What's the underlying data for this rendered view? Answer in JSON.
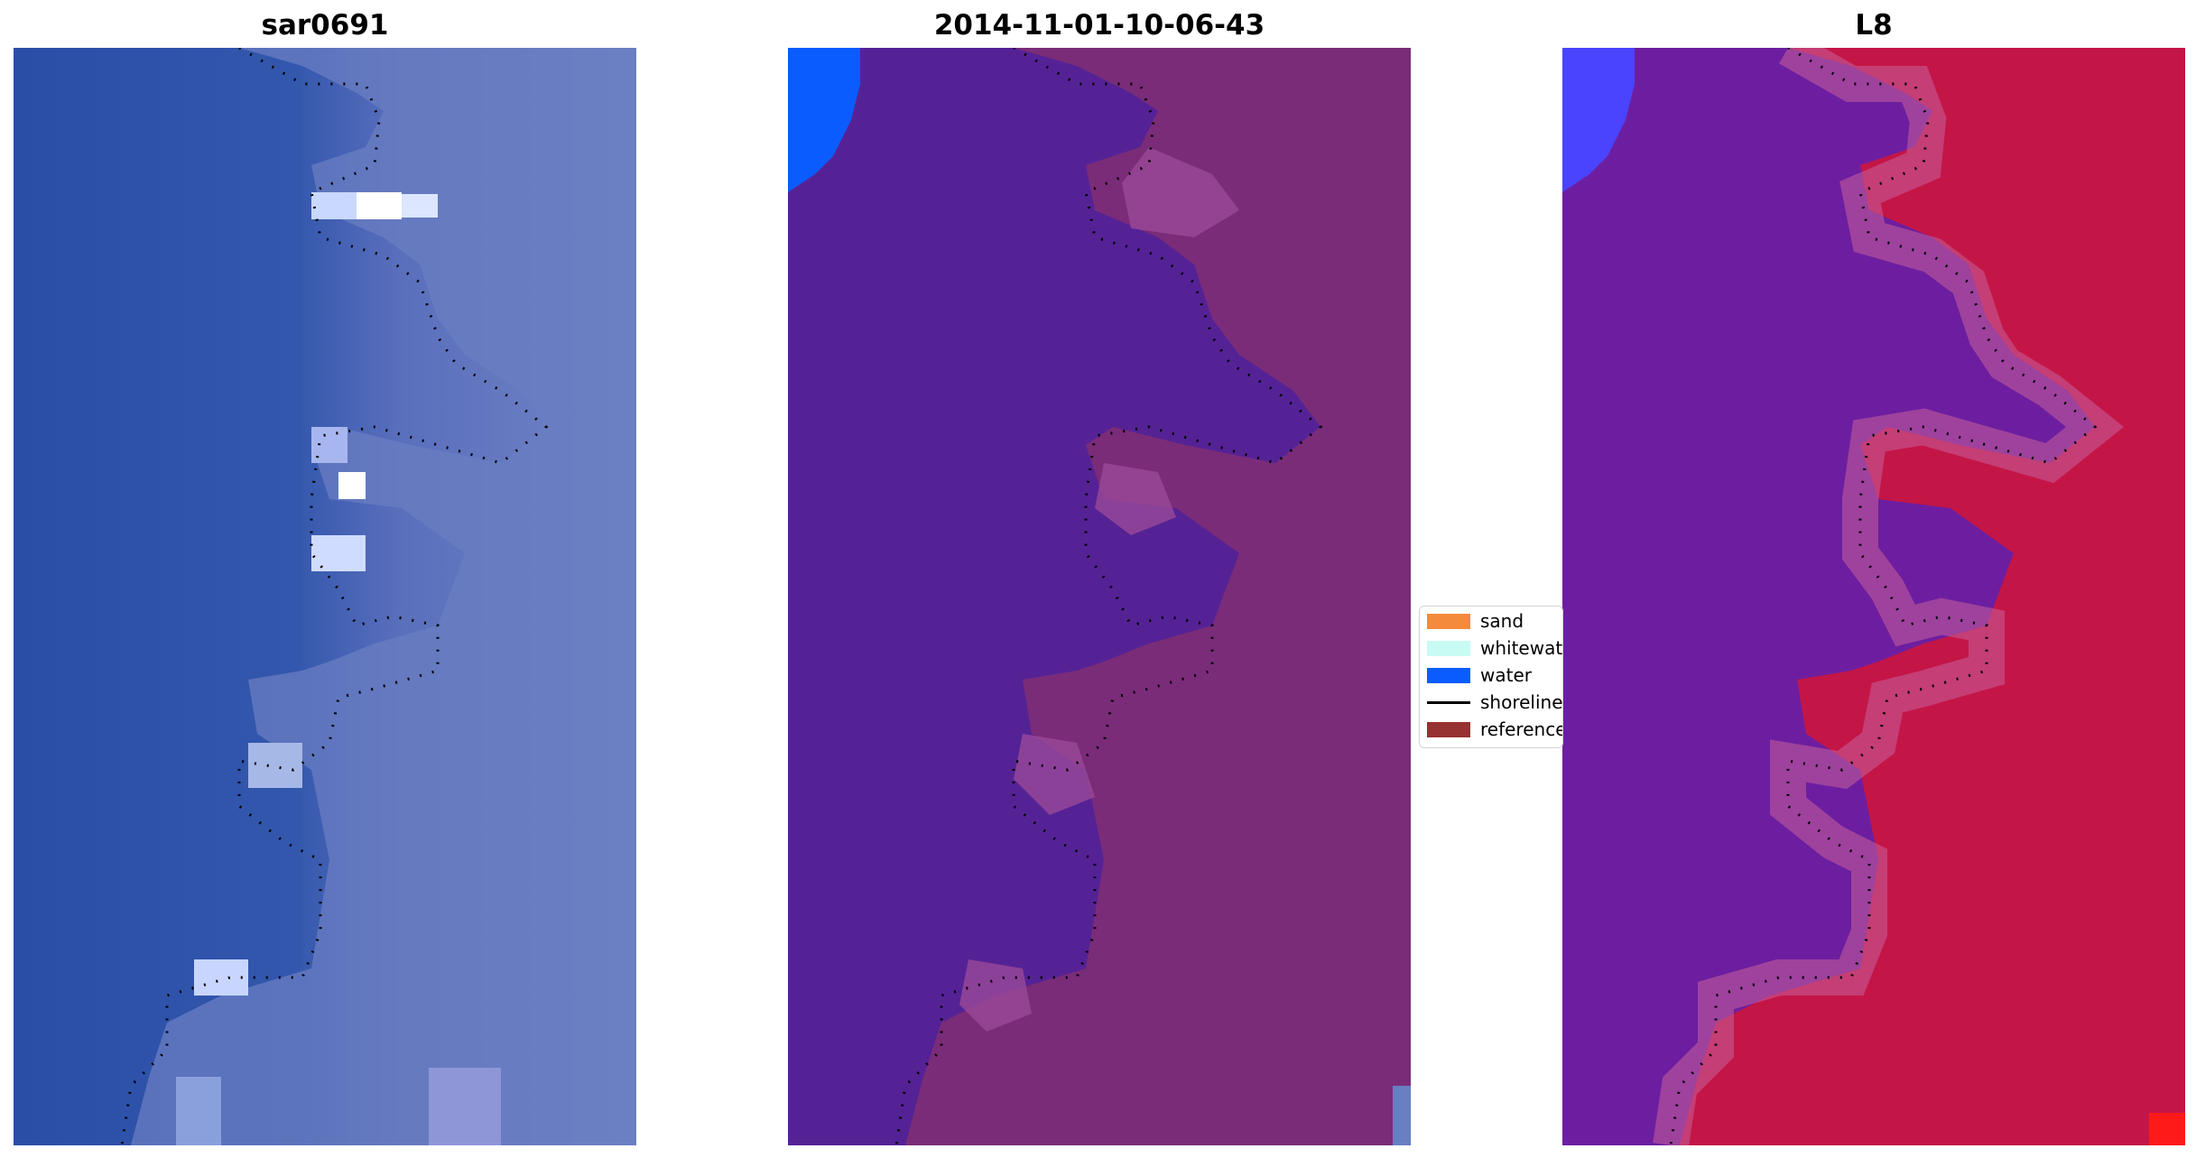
{
  "panels": [
    {
      "id": "rgb",
      "title": "sar0691",
      "base_color": "#2b50a8",
      "land_color": "#6f82c4",
      "highlight_color": "#e6eeff"
    },
    {
      "id": "classified",
      "title": "2014-11-01-10-06-43",
      "base_color": "#552296",
      "land_color": "#7a2c78",
      "water_color": "#0b5cff"
    },
    {
      "id": "index",
      "title": "L8",
      "base_color": "#6d1ea0",
      "land_color": "#c41547",
      "water_color": "#4a44ff"
    }
  ],
  "legend": {
    "items": [
      {
        "label": "sand",
        "type": "patch",
        "color": "#f48a3c"
      },
      {
        "label": "whitewater",
        "type": "patch",
        "color": "#c8fbf4"
      },
      {
        "label": "water",
        "type": "patch",
        "color": "#0b5cff"
      },
      {
        "label": "shoreline",
        "type": "line",
        "color": "#000000"
      },
      {
        "label": "reference",
        "type": "patch",
        "color": "#963232"
      }
    ]
  }
}
